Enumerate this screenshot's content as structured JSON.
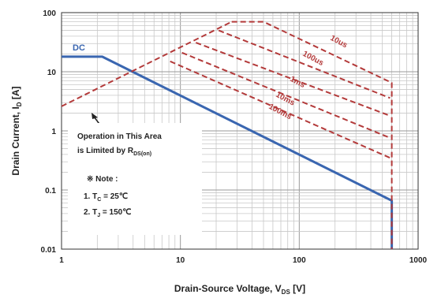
{
  "chart_data": {
    "type": "line",
    "xscale": "log",
    "yscale": "log",
    "xlim": [
      1,
      1000
    ],
    "ylim": [
      0.01,
      100
    ],
    "xlabel": "Drain-Source Voltage, V",
    "xlabel_sub": "DS",
    "xlabel_unit": " [V]",
    "ylabel": "Drain Current, I",
    "ylabel_sub": "D",
    "ylabel_unit": " [A]",
    "x_ticks": [
      {
        "value": 1,
        "label": "1"
      },
      {
        "value": 10,
        "label": "10"
      },
      {
        "value": 100,
        "label": "100"
      },
      {
        "value": 1000,
        "label": "1000"
      }
    ],
    "y_ticks": [
      {
        "value": 0.01,
        "label": "0.01"
      },
      {
        "value": 0.1,
        "label": "0.1"
      },
      {
        "value": 1,
        "label": "1"
      },
      {
        "value": 10,
        "label": "10"
      },
      {
        "value": 100,
        "label": "100"
      }
    ],
    "grid": true,
    "series": [
      {
        "name": "DC",
        "color": "#3a66b0",
        "style": "solid",
        "points": [
          [
            1,
            18
          ],
          [
            2.2,
            18
          ],
          [
            600,
            0.066
          ],
          [
            600,
            0.01
          ]
        ]
      },
      {
        "name": "10us",
        "color": "#b33a3a",
        "style": "dashed",
        "points": [
          [
            27,
            70
          ],
          [
            50,
            70
          ],
          [
            600,
            6.5
          ],
          [
            600,
            0.01
          ]
        ]
      },
      {
        "name": "100us",
        "color": "#b33a3a",
        "style": "dashed",
        "points": [
          [
            21,
            50
          ],
          [
            580,
            3.6
          ]
        ]
      },
      {
        "name": "1ms",
        "color": "#b33a3a",
        "style": "dashed",
        "points": [
          [
            13.5,
            31
          ],
          [
            580,
            1.8
          ]
        ]
      },
      {
        "name": "10ms",
        "color": "#b33a3a",
        "style": "dashed",
        "points": [
          [
            10.3,
            21
          ],
          [
            580,
            0.76
          ]
        ]
      },
      {
        "name": "100ms",
        "color": "#b33a3a",
        "style": "dashed",
        "points": [
          [
            8.2,
            15
          ],
          [
            580,
            0.35
          ]
        ]
      },
      {
        "name": "R_DS(on) limit",
        "color": "#b33a3a",
        "style": "dashed",
        "points": [
          [
            1,
            2.6
          ],
          [
            27,
            70
          ]
        ]
      }
    ],
    "annotations": {
      "limit_line1": "Operation in This Area",
      "limit_line2_prefix": "is Limited by R",
      "limit_line2_sub": "DS(on)",
      "note_title": "※ Note :",
      "note1_prefix": "1. T",
      "note1_sub": "C",
      "note1_suffix": " = 25℃",
      "note2_prefix": "2. T",
      "note2_sub": "J",
      "note2_suffix": " = 150℃"
    }
  }
}
